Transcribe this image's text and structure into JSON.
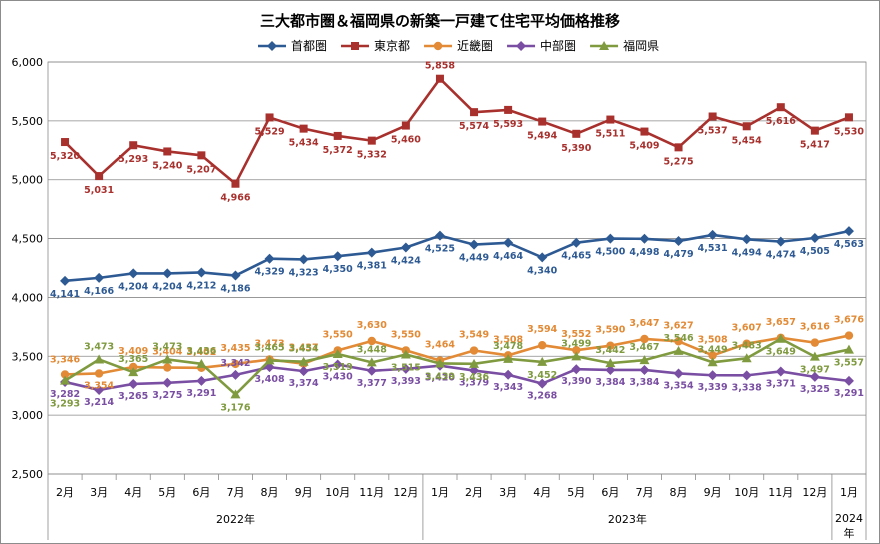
{
  "chart_data": {
    "type": "line",
    "title": "三大都市圏＆福岡県の新築一戸建て住宅平均価格推移",
    "xlabel": "",
    "ylabel": "",
    "ylim": [
      2500,
      6000
    ],
    "yticks": [
      "2,500",
      "3,000",
      "3,500",
      "4,000",
      "4,500",
      "5,000",
      "5,500",
      "6,000"
    ],
    "ytick_values": [
      2500,
      3000,
      3500,
      4000,
      4500,
      5000,
      5500,
      6000
    ],
    "grid": true,
    "legend": "top",
    "categories": [
      "2月",
      "3月",
      "4月",
      "5月",
      "6月",
      "7月",
      "8月",
      "9月",
      "10月",
      "11月",
      "12月",
      "1月",
      "2月",
      "3月",
      "4月",
      "5月",
      "6月",
      "7月",
      "8月",
      "9月",
      "10月",
      "11月",
      "12月",
      "1月"
    ],
    "year_groups": [
      {
        "label": "2022年",
        "start": 0,
        "end": 10
      },
      {
        "label": "2023年",
        "start": 11,
        "end": 22
      },
      {
        "label": "2024年",
        "start": 23,
        "end": 23
      }
    ],
    "series": [
      {
        "name": "首都圏",
        "color": "#2e5a94",
        "marker": "diamond",
        "values": [
          4141,
          4166,
          4204,
          4204,
          4212,
          4186,
          4329,
          4323,
          4350,
          4381,
          4424,
          4525,
          4449,
          4464,
          4340,
          4465,
          4500,
          4498,
          4479,
          4531,
          4494,
          4474,
          4505,
          4563
        ],
        "labels": [
          "4,141",
          "4,166",
          "4,204",
          "4,204",
          "4,212",
          "4,186",
          "4,329",
          "4,323",
          "4,350",
          "4,381",
          "4,424",
          "4,525",
          "4,449",
          "4,464",
          "4,340",
          "4,465",
          "4,500",
          "4,498",
          "4,479",
          "4,531",
          "4,494",
          "4,474",
          "4,505",
          "4,563"
        ]
      },
      {
        "name": "東京都",
        "color": "#a8302d",
        "marker": "square",
        "values": [
          5320,
          5031,
          5293,
          5240,
          5207,
          4966,
          5529,
          5434,
          5372,
          5332,
          5460,
          5858,
          5574,
          5593,
          5494,
          5390,
          5511,
          5409,
          5275,
          5537,
          5454,
          5616,
          5417,
          5530
        ],
        "labels": [
          "5,320",
          "5,031",
          "5,293",
          "5,240",
          "5,207",
          "4,966",
          "5,529",
          "5,434",
          "5,372",
          "5,332",
          "5,460",
          "5,858",
          "5,574",
          "5,593",
          "5,494",
          "5,390",
          "5,511",
          "5,409",
          "5,275",
          "5,537",
          "5,454",
          "5,616",
          "5,417",
          "5,530"
        ]
      },
      {
        "name": "近畿圏",
        "color": "#e28a35",
        "marker": "circle",
        "values": [
          3346,
          3354,
          3409,
          3404,
          3402,
          3435,
          3473,
          3437,
          3550,
          3630,
          3550,
          3464,
          3549,
          3508,
          3594,
          3552,
          3590,
          3647,
          3627,
          3508,
          3607,
          3657,
          3616,
          3676
        ],
        "labels": [
          "3,346",
          "3,354",
          "3,409",
          "3,404",
          "3,402",
          "3,435",
          "3,473",
          "3,437",
          "3,550",
          "3,630",
          "3,550",
          "3,464",
          "3,549",
          "3,508",
          "3,594",
          "3,552",
          "3,590",
          "3,647",
          "3,627",
          "3,508",
          "3,607",
          "3,657",
          "3,616",
          "3,676"
        ]
      },
      {
        "name": "中部圏",
        "color": "#7a4fa3",
        "marker": "diamond",
        "values": [
          3282,
          3214,
          3265,
          3275,
          3291,
          3342,
          3408,
          3374,
          3430,
          3377,
          3393,
          3420,
          3379,
          3343,
          3268,
          3390,
          3384,
          3384,
          3354,
          3339,
          3338,
          3371,
          3325,
          3291
        ],
        "labels": [
          "3,282",
          "3,214",
          "3,265",
          "3,275",
          "3,291",
          "3,342",
          "3,408",
          "3,374",
          "3,430",
          "3,377",
          "3,393",
          "3,420",
          "3,379",
          "3,343",
          "3,268",
          "3,390",
          "3,384",
          "3,384",
          "3,354",
          "3,339",
          "3,338",
          "3,371",
          "3,325",
          "3,291"
        ]
      },
      {
        "name": "福岡県",
        "color": "#7f9a3f",
        "marker": "triangle",
        "values": [
          3293,
          3473,
          3365,
          3473,
          3436,
          3176,
          3465,
          3454,
          3519,
          3448,
          3515,
          3439,
          3436,
          3478,
          3452,
          3499,
          3442,
          3467,
          3546,
          3449,
          3483,
          3649,
          3497,
          3557
        ],
        "labels": [
          "3,293",
          "3,473",
          "3,365",
          "3,473",
          "3,436",
          "3,176",
          "3,465",
          "3,454",
          "3,519",
          "3,448",
          "3,515",
          "3,439",
          "3,436",
          "3,478",
          "3,452",
          "3,499",
          "3,442",
          "3,467",
          "3,546",
          "3,449",
          "3,483",
          "3,649",
          "3,497",
          "3,557"
        ]
      }
    ]
  }
}
